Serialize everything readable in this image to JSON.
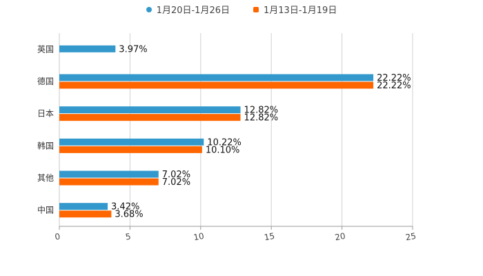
{
  "chart_data": {
    "type": "bar",
    "orientation": "horizontal",
    "categories": [
      "英国",
      "德国",
      "日本",
      "韩国",
      "其他",
      "中国"
    ],
    "series": [
      {
        "name": "1月20日-1月26日",
        "color": "#3399cc",
        "values": [
          3.97,
          22.22,
          12.82,
          10.22,
          7.02,
          3.42
        ],
        "labels": [
          "3.97%",
          "22.22%",
          "12.82%",
          "10.22%",
          "7.02%",
          "3.42%"
        ]
      },
      {
        "name": "1月13日-1月19日",
        "color": "#ff6600",
        "values": [
          null,
          22.22,
          12.82,
          10.1,
          7.02,
          3.68
        ],
        "labels": [
          "",
          "22.22%",
          "12.82%",
          "10.10%",
          "7.02%",
          "3.68%"
        ]
      }
    ],
    "xlim": [
      0,
      25
    ],
    "xticks": [
      "0",
      "5",
      "10",
      "15",
      "20",
      "25"
    ],
    "grid": true,
    "legend": "top-center"
  }
}
